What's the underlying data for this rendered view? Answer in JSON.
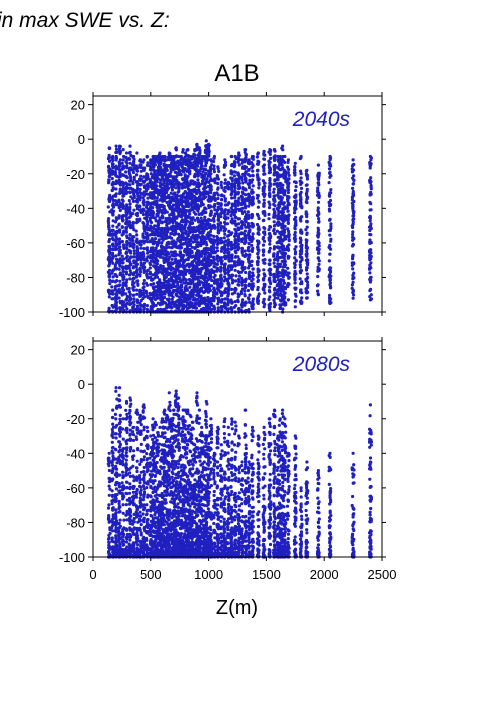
{
  "page": {
    "heading": "in max SWE vs. Z:"
  },
  "colors": {
    "points": "#2020c0",
    "panel_label": "#2020c0",
    "frame": "#000000"
  },
  "chart_data": [
    {
      "type": "scatter",
      "title": "A1B",
      "panel_label": "2040s",
      "xlabel": "",
      "ylabel": "",
      "xlim": [
        0,
        2500
      ],
      "ylim": [
        -100,
        25
      ],
      "yticks": [
        20,
        0,
        -20,
        -40,
        -60,
        -80,
        -100
      ],
      "xticks": [
        0,
        500,
        1000,
        1500,
        2000,
        2500
      ],
      "x_ticklabels_shown": false,
      "grid": false,
      "series": [
        {
          "x_columns": [
            140,
            170,
            200,
            230,
            260,
            290,
            320,
            350,
            380,
            410,
            440,
            470,
            500,
            520,
            540,
            560,
            580,
            600,
            620,
            640,
            660,
            680,
            700,
            720,
            740,
            760,
            780,
            800,
            820,
            840,
            860,
            880,
            900,
            920,
            940,
            960,
            980,
            1000,
            1020,
            1050,
            1080,
            1110,
            1140,
            1170,
            1200,
            1230,
            1260,
            1290,
            1320,
            1350,
            1380,
            1430,
            1480,
            1530,
            1570,
            1600,
            1620,
            1640,
            1660,
            1690,
            1750,
            1800,
            1850,
            1950,
            2050,
            2250,
            2400
          ],
          "y_max": [
            -5,
            -10,
            -4,
            -4,
            -6,
            -8,
            -4,
            -10,
            -8,
            -12,
            -12,
            -10,
            -12,
            -10,
            -10,
            -10,
            -8,
            -10,
            -10,
            -12,
            -8,
            -10,
            -10,
            -5,
            -10,
            -10,
            -6,
            -8,
            -6,
            -10,
            -10,
            -6,
            -3,
            -5,
            -10,
            -10,
            -1,
            -3,
            -12,
            -10,
            -16,
            -25,
            -12,
            -25,
            -10,
            -10,
            -8,
            -12,
            -6,
            -12,
            -10,
            -8,
            -7,
            -6,
            -6,
            -10,
            -10,
            -4,
            -10,
            -12,
            -14,
            -10,
            -18,
            -15,
            -10,
            -12,
            -10
          ],
          "y_min": [
            -100,
            -100,
            -100,
            -100,
            -100,
            -100,
            -100,
            -100,
            -100,
            -100,
            -100,
            -100,
            -100,
            -100,
            -100,
            -100,
            -100,
            -100,
            -100,
            -100,
            -100,
            -100,
            -100,
            -100,
            -100,
            -100,
            -100,
            -100,
            -100,
            -100,
            -100,
            -100,
            -100,
            -100,
            -100,
            -100,
            -100,
            -100,
            -100,
            -100,
            -100,
            -100,
            -100,
            -100,
            -100,
            -100,
            -100,
            -100,
            -100,
            -100,
            -98,
            -95,
            -97,
            -99,
            -97,
            -92,
            -98,
            -100,
            -96,
            -93,
            -97,
            -95,
            -92,
            -90,
            -95,
            -92,
            -93
          ]
        }
      ]
    },
    {
      "type": "scatter",
      "title": "",
      "panel_label": "2080s",
      "xlabel": "Z(m)",
      "ylabel": "",
      "xlim": [
        0,
        2500
      ],
      "ylim": [
        -100,
        25
      ],
      "yticks": [
        20,
        0,
        -20,
        -40,
        -60,
        -80,
        -100
      ],
      "xticks": [
        0,
        500,
        1000,
        1500,
        2000,
        2500
      ],
      "x_ticklabels_shown": true,
      "grid": false,
      "series": [
        {
          "x_columns": [
            140,
            170,
            200,
            230,
            260,
            290,
            320,
            350,
            380,
            410,
            440,
            470,
            500,
            520,
            540,
            560,
            580,
            600,
            620,
            640,
            660,
            680,
            700,
            720,
            740,
            760,
            780,
            800,
            820,
            840,
            860,
            880,
            900,
            920,
            940,
            960,
            980,
            1000,
            1020,
            1050,
            1080,
            1110,
            1140,
            1170,
            1200,
            1230,
            1260,
            1290,
            1320,
            1350,
            1380,
            1430,
            1480,
            1530,
            1570,
            1600,
            1620,
            1640,
            1660,
            1690,
            1750,
            1800,
            1850,
            1950,
            2050,
            2250,
            2400
          ],
          "y_max": [
            -40,
            -15,
            -2,
            -2,
            -20,
            -10,
            -8,
            -25,
            -15,
            -18,
            -12,
            -25,
            -30,
            -20,
            -22,
            -28,
            -25,
            -20,
            -15,
            -18,
            -5,
            -20,
            -15,
            -4,
            -8,
            -20,
            -15,
            -15,
            -15,
            -18,
            -22,
            -35,
            -5,
            -15,
            -25,
            -30,
            -10,
            -30,
            -20,
            -40,
            -25,
            -35,
            -20,
            -25,
            -20,
            -22,
            -30,
            -45,
            -15,
            -45,
            -25,
            -30,
            -25,
            -20,
            -15,
            -30,
            -20,
            -15,
            -20,
            -40,
            -30,
            -60,
            -45,
            -50,
            -40,
            -40,
            -12
          ],
          "y_min": [
            -100,
            -100,
            -100,
            -100,
            -100,
            -100,
            -100,
            -100,
            -100,
            -100,
            -100,
            -100,
            -100,
            -100,
            -100,
            -100,
            -100,
            -100,
            -100,
            -100,
            -100,
            -100,
            -100,
            -100,
            -100,
            -100,
            -100,
            -100,
            -100,
            -100,
            -100,
            -100,
            -100,
            -100,
            -100,
            -100,
            -100,
            -100,
            -100,
            -100,
            -100,
            -100,
            -100,
            -100,
            -100,
            -100,
            -100,
            -100,
            -100,
            -100,
            -100,
            -100,
            -100,
            -100,
            -100,
            -100,
            -100,
            -100,
            -100,
            -100,
            -100,
            -100,
            -100,
            -100,
            -100,
            -100,
            -100
          ]
        }
      ]
    }
  ]
}
